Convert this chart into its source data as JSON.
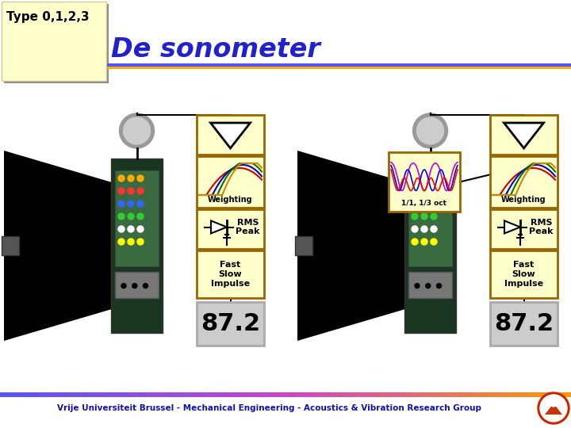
{
  "title": "De sonometer",
  "subtitle_box_text": "Type 0,1,2,3",
  "subtitle_box_color": "#ffffcc",
  "title_color": "#2222cc",
  "background_color": "#ffffff",
  "footer_text": "Vrije Universiteit Brussel - Mechanical Engineering - Acoustics & Vibration Research Group",
  "footer_text_color": "#1111aa",
  "weighting_label": "Weighting",
  "rms_peak_label": "RMS\nPeak",
  "fast_slow_label": "Fast\nSlow\nImpulse",
  "display_value": "87.2",
  "oct_label": "1/1, 1/3 oct",
  "box_fill_color": "#ffffcc",
  "box_border_color": "#996600",
  "display_fill_color": "#cccccc",
  "meter_dark": "#111111",
  "meter_body_dark": "#1a3520",
  "meter_body_light": "#3a6a40",
  "mic_outer": "#999999",
  "mic_inner": "#cccccc",
  "header_line_blue": "#5555ff",
  "header_line_orange": "#ffaa00",
  "note_shadow": "#888888"
}
